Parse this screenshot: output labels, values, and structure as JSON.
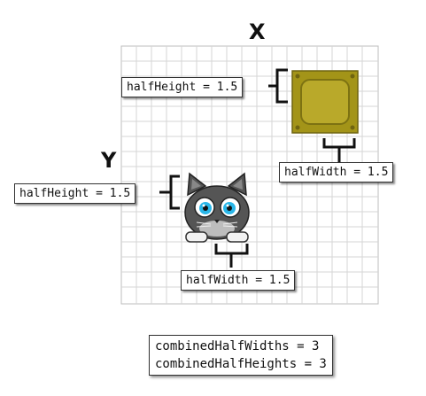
{
  "axes": {
    "x_label": "X",
    "y_label": "Y"
  },
  "box_labels": {
    "half_height": "halfHeight = 1.5",
    "half_width": "halfWidth = 1.5"
  },
  "cat_labels": {
    "half_height": "halfHeight = 1.5",
    "half_width": "halfWidth = 1.5"
  },
  "combined": {
    "half_widths": "combinedHalfWidths = 3",
    "half_heights": "combinedHalfHeights = 3"
  },
  "colors": {
    "grid_line": "#d6d6d6",
    "box_outer": "#a39418",
    "box_inner": "#b9a92a",
    "cat_body": "#555555",
    "cat_eye": "#29b6e8",
    "bracket": "#111111"
  }
}
